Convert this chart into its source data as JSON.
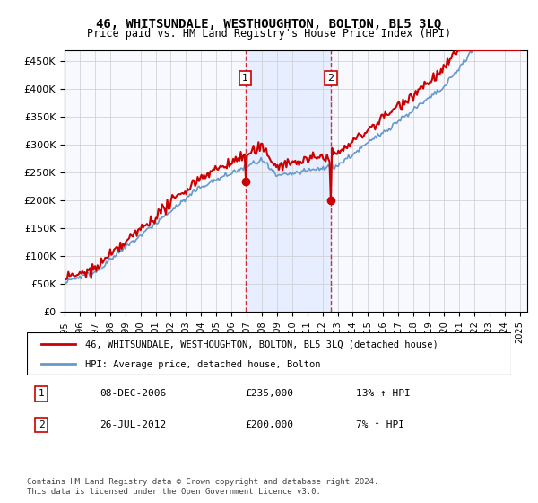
{
  "title": "46, WHITSUNDALE, WESTHOUGHTON, BOLTON, BL5 3LQ",
  "subtitle": "Price paid vs. HM Land Registry's House Price Index (HPI)",
  "ylabel": "",
  "ylim": [
    0,
    470000
  ],
  "yticks": [
    0,
    50000,
    100000,
    150000,
    200000,
    250000,
    300000,
    350000,
    400000,
    450000
  ],
  "ytick_labels": [
    "£0",
    "£50K",
    "£100K",
    "£150K",
    "£200K",
    "£250K",
    "£300K",
    "£350K",
    "£400K",
    "£450K"
  ],
  "hpi_color": "#6699cc",
  "price_color": "#cc0000",
  "marker1_date": 2006.92,
  "marker1_price": 235000,
  "marker2_date": 2012.56,
  "marker2_price": 200000,
  "legend_line1": "46, WHITSUNDALE, WESTHOUGHTON, BOLTON, BL5 3LQ (detached house)",
  "legend_line2": "HPI: Average price, detached house, Bolton",
  "table_row1": [
    "1",
    "08-DEC-2006",
    "£235,000",
    "13% ↑ HPI"
  ],
  "table_row2": [
    "2",
    "26-JUL-2012",
    "£200,000",
    "7% ↑ HPI"
  ],
  "footnote": "Contains HM Land Registry data © Crown copyright and database right 2024.\nThis data is licensed under the Open Government Licence v3.0.",
  "background_color": "#ffffff"
}
